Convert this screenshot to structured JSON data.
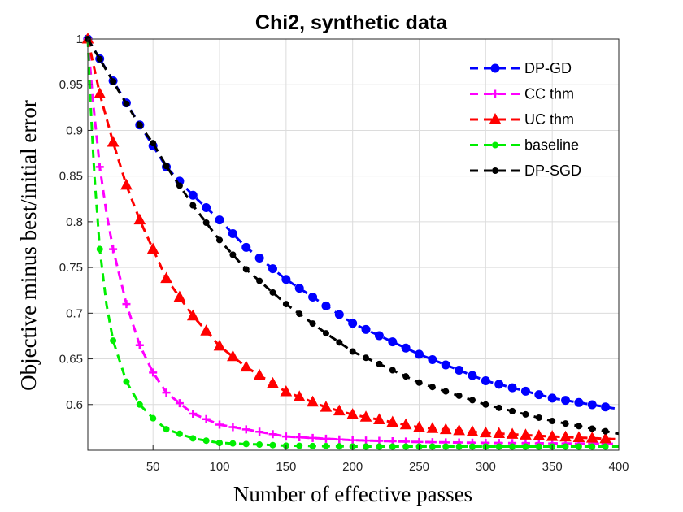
{
  "chart_data": {
    "type": "line",
    "title": "Chi2, synthetic data",
    "xlabel": "Number of effective passes",
    "ylabel": "Objective minus best/initial error",
    "xlim": [
      1,
      400
    ],
    "ylim": [
      0.55,
      1.0
    ],
    "xticks": [
      50,
      100,
      150,
      200,
      250,
      300,
      350,
      400
    ],
    "xtick_labels": [
      "50",
      "100",
      "150",
      "200",
      "250",
      "300",
      "350",
      "400"
    ],
    "yticks": [
      0.6,
      0.65,
      0.7,
      0.75,
      0.8,
      0.85,
      0.9,
      0.95,
      1.0
    ],
    "ytick_labels": [
      "0.6",
      "0.65",
      "0.7",
      "0.75",
      "0.8",
      "0.85",
      "0.9",
      "0.95",
      "1"
    ],
    "grid": true,
    "legend_position": "top-right",
    "series": [
      {
        "name": "DP-GD",
        "color": "#0000ff",
        "marker": "circle",
        "x": [
          1,
          40,
          60,
          80,
          100,
          120,
          150,
          180,
          200,
          250,
          300,
          350,
          400
        ],
        "y": [
          1.0,
          0.906,
          0.86,
          0.829,
          0.802,
          0.772,
          0.737,
          0.708,
          0.689,
          0.655,
          0.626,
          0.607,
          0.595
        ]
      },
      {
        "name": "CC thm",
        "color": "#ff00ff",
        "marker": "plus",
        "x": [
          1,
          5,
          10,
          15,
          20,
          30,
          40,
          50,
          60,
          80,
          100,
          150,
          200,
          250,
          300,
          400
        ],
        "y": [
          1.0,
          0.93,
          0.86,
          0.81,
          0.77,
          0.71,
          0.665,
          0.635,
          0.613,
          0.59,
          0.578,
          0.565,
          0.561,
          0.559,
          0.558,
          0.557
        ]
      },
      {
        "name": "UC thm",
        "color": "#ff0000",
        "marker": "triangle",
        "x": [
          1,
          10,
          20,
          30,
          40,
          50,
          60,
          80,
          100,
          120,
          150,
          180,
          200,
          250,
          300,
          350,
          400
        ],
        "y": [
          1.0,
          0.94,
          0.887,
          0.84,
          0.802,
          0.77,
          0.738,
          0.697,
          0.664,
          0.641,
          0.614,
          0.597,
          0.589,
          0.575,
          0.569,
          0.565,
          0.562
        ]
      },
      {
        "name": "baseline",
        "color": "#00ee00",
        "marker": "dot",
        "x": [
          1,
          3,
          6,
          10,
          15,
          20,
          30,
          40,
          50,
          60,
          80,
          100,
          150,
          200,
          300,
          400
        ],
        "y": [
          1.0,
          0.93,
          0.85,
          0.77,
          0.71,
          0.67,
          0.625,
          0.6,
          0.585,
          0.573,
          0.563,
          0.558,
          0.555,
          0.554,
          0.554,
          0.554
        ]
      },
      {
        "name": "DP-SGD",
        "color": "#000000",
        "marker": "dot",
        "x": [
          1,
          30,
          40,
          50,
          60,
          80,
          100,
          120,
          150,
          180,
          200,
          250,
          300,
          350,
          400
        ],
        "y": [
          1.0,
          0.929,
          0.906,
          0.886,
          0.861,
          0.818,
          0.78,
          0.748,
          0.71,
          0.678,
          0.658,
          0.624,
          0.6,
          0.582,
          0.568
        ]
      }
    ]
  }
}
